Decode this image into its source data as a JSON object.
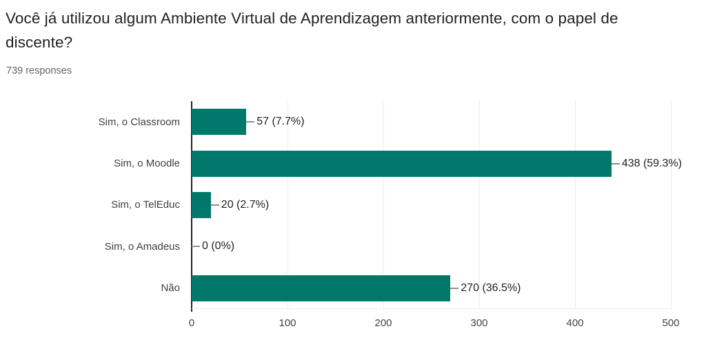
{
  "header": {
    "title": "Você já utilizou algum Ambiente Virtual de Aprendizagem anteriormente, com o papel de discente?",
    "responses_count": "739 responses"
  },
  "chart_data": {
    "type": "bar",
    "orientation": "horizontal",
    "categories": [
      "Sim, o Classroom",
      "Sim, o Moodle",
      "Sim, o TelEduc",
      "Sim, o Amadeus",
      "Não"
    ],
    "values": [
      57,
      438,
      20,
      0,
      270
    ],
    "value_labels": [
      "57 (7.7%)",
      "438 (59.3%)",
      "20 (2.7%)",
      "0 (0%)",
      "270 (36.5%)"
    ],
    "total_responses": 739,
    "x_ticks": [
      0,
      100,
      200,
      300,
      400,
      500
    ],
    "xlim": [
      0,
      500
    ],
    "bar_color": "#00796b",
    "grid": true,
    "gridline_color": "#ebebeb",
    "axis_color": "#212121",
    "callout_color": "#8f8f8f",
    "legend": "none"
  }
}
